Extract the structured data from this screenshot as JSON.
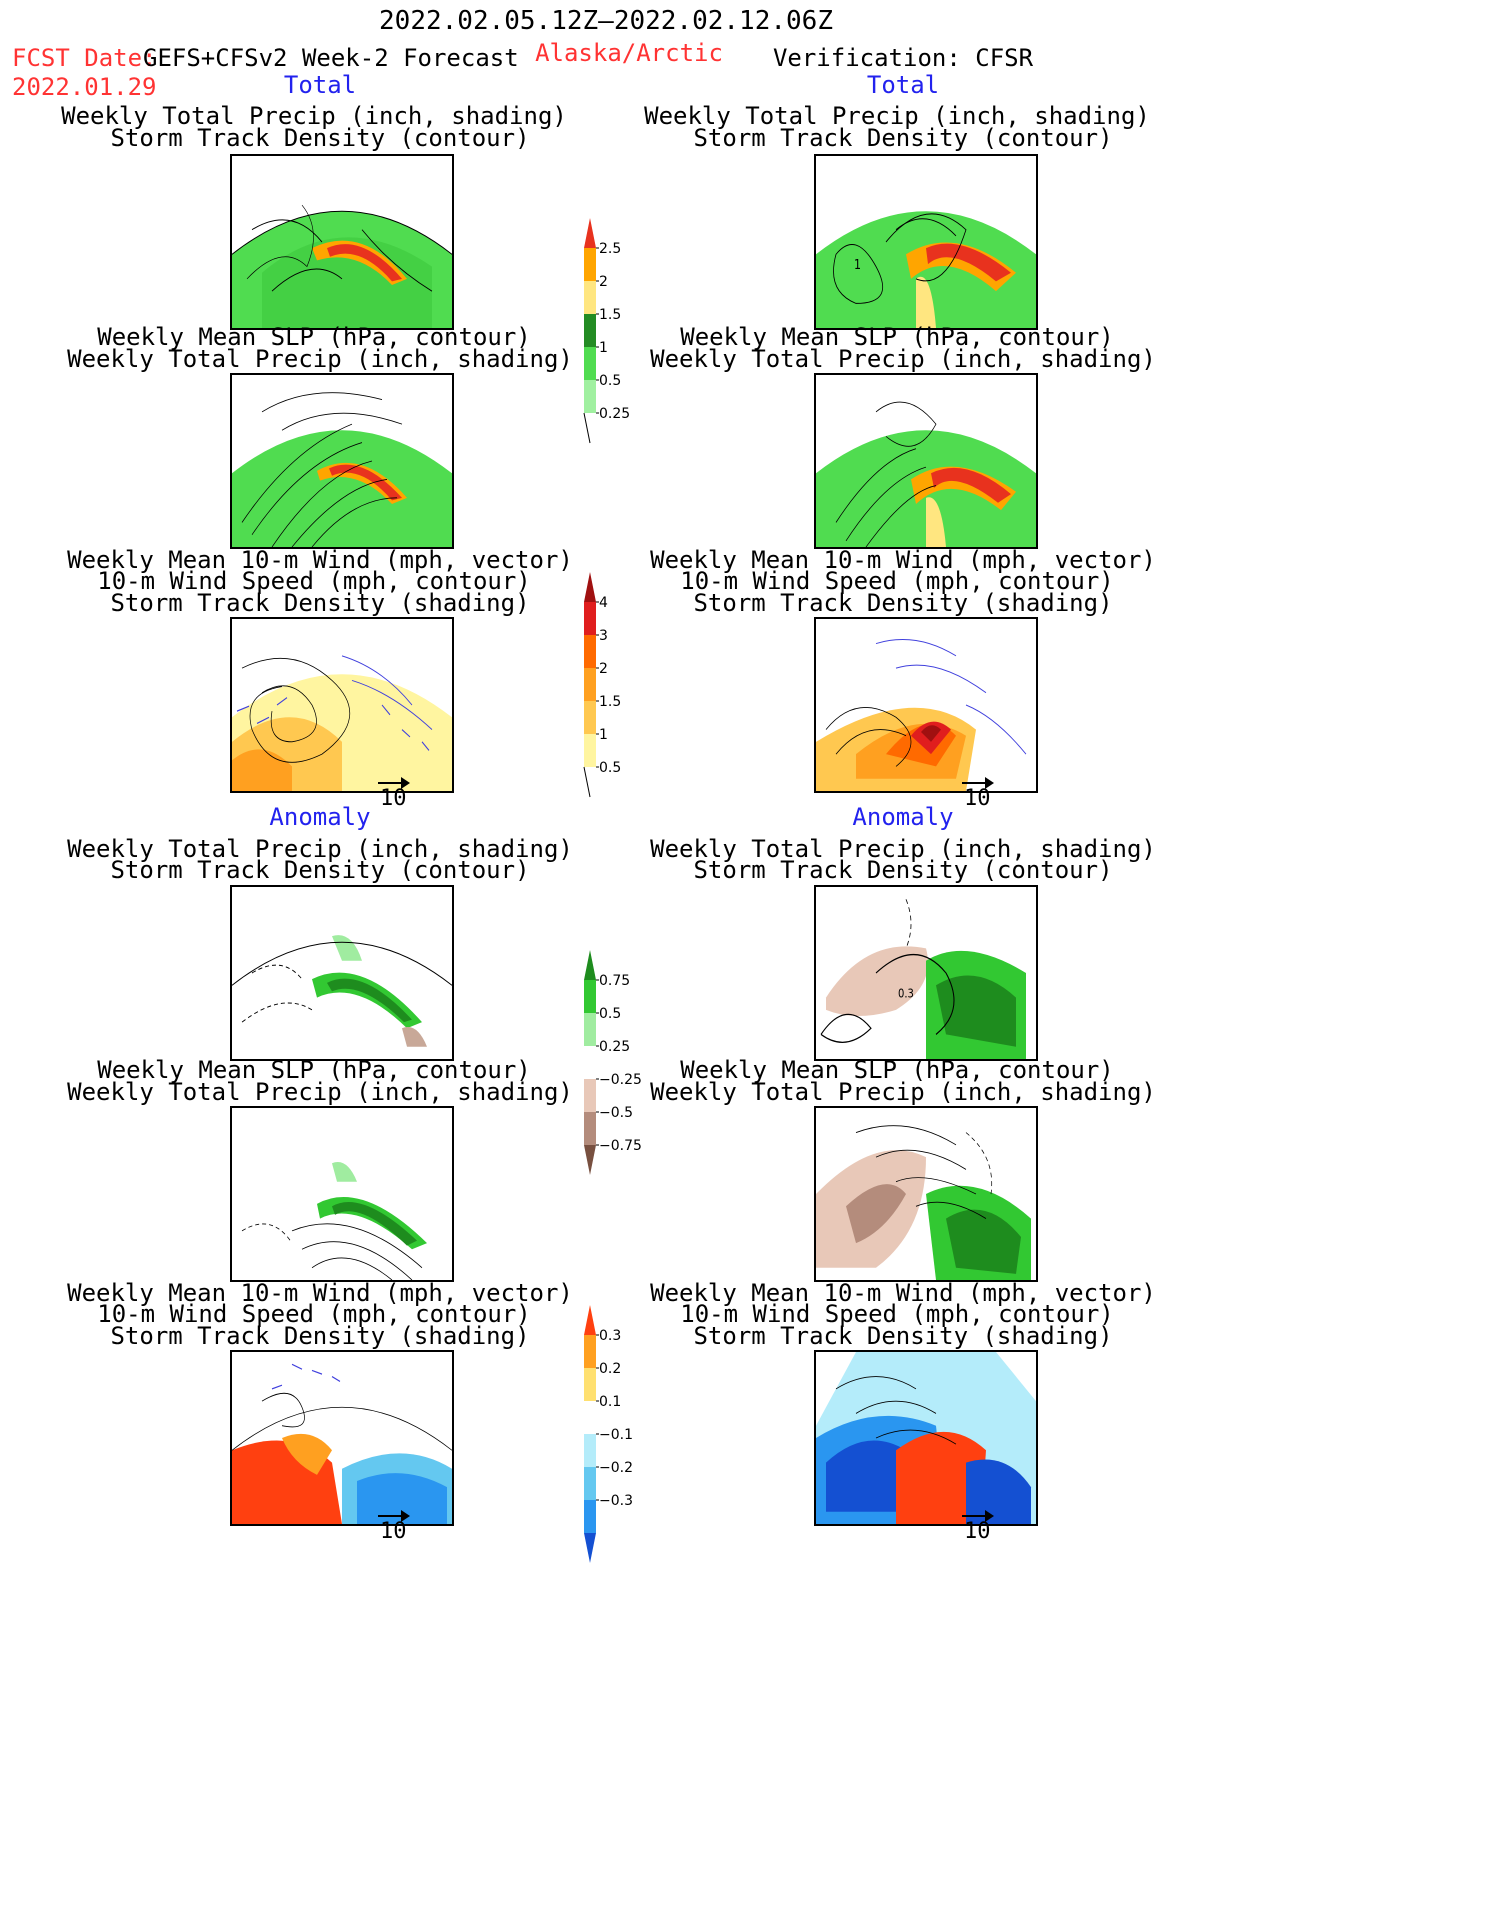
{
  "header": {
    "date_range": "2022.02.05.12Z–2022.02.12.06Z",
    "fcst_label": "FCST Date:",
    "model": "GEFS+CFSv2 Week-2 Forecast",
    "fcst_date": "2022.01.29",
    "region": "Alaska/Arctic",
    "verification": "Verification: CFSR"
  },
  "sections": {
    "total": "Total",
    "anomaly": "Anomaly"
  },
  "panel_titles": {
    "precip_track": [
      "Weekly Total Precip (inch, shading)",
      "Storm Track Density (contour)"
    ],
    "slp_precip": [
      "Weekly Mean SLP (hPa, contour)",
      "Weekly Total Precip (inch, shading)"
    ],
    "wind_track": [
      "Weekly Mean 10-m Wind (mph, vector)",
      "10-m Wind Speed (mph, contour)",
      "Storm Track Density (shading)"
    ]
  },
  "vector_ref": "10",
  "map_label_1": "1",
  "map_label_03": "0.3",
  "colorbars": {
    "precip_total": {
      "labels": [
        "2.5",
        "2",
        "1.5",
        "1",
        "0.5",
        "0.25"
      ],
      "colors": [
        "#e8321e",
        "#ffa500",
        "#ffe680",
        "#238c23",
        "#50dc50",
        "#a0f0a0"
      ]
    },
    "storm_total": {
      "labels": [
        "4",
        "3",
        "2",
        "1.5",
        "1",
        "0.5"
      ],
      "colors": [
        "#a01010",
        "#e01e1e",
        "#ff6a00",
        "#ffa020",
        "#ffc850",
        "#fff5a0"
      ]
    },
    "precip_anom": {
      "labels": [
        "0.75",
        "0.5",
        "0.25",
        "−0.25",
        "−0.5",
        "−0.75"
      ],
      "colors": [
        "#1e8c1e",
        "#32c832",
        "#a0eca0",
        "#ffffff",
        "#e8c8b8",
        "#b48c7c",
        "#785040"
      ]
    },
    "storm_anom": {
      "labels": [
        "0.3",
        "0.2",
        "0.1",
        "−0.1",
        "−0.2",
        "−0.3"
      ],
      "colors": [
        "#ff4010",
        "#ffa020",
        "#ffe070",
        "#ffffff",
        "#b4ecfa",
        "#64c8f0",
        "#2a96f0",
        "#1450d2"
      ]
    }
  }
}
